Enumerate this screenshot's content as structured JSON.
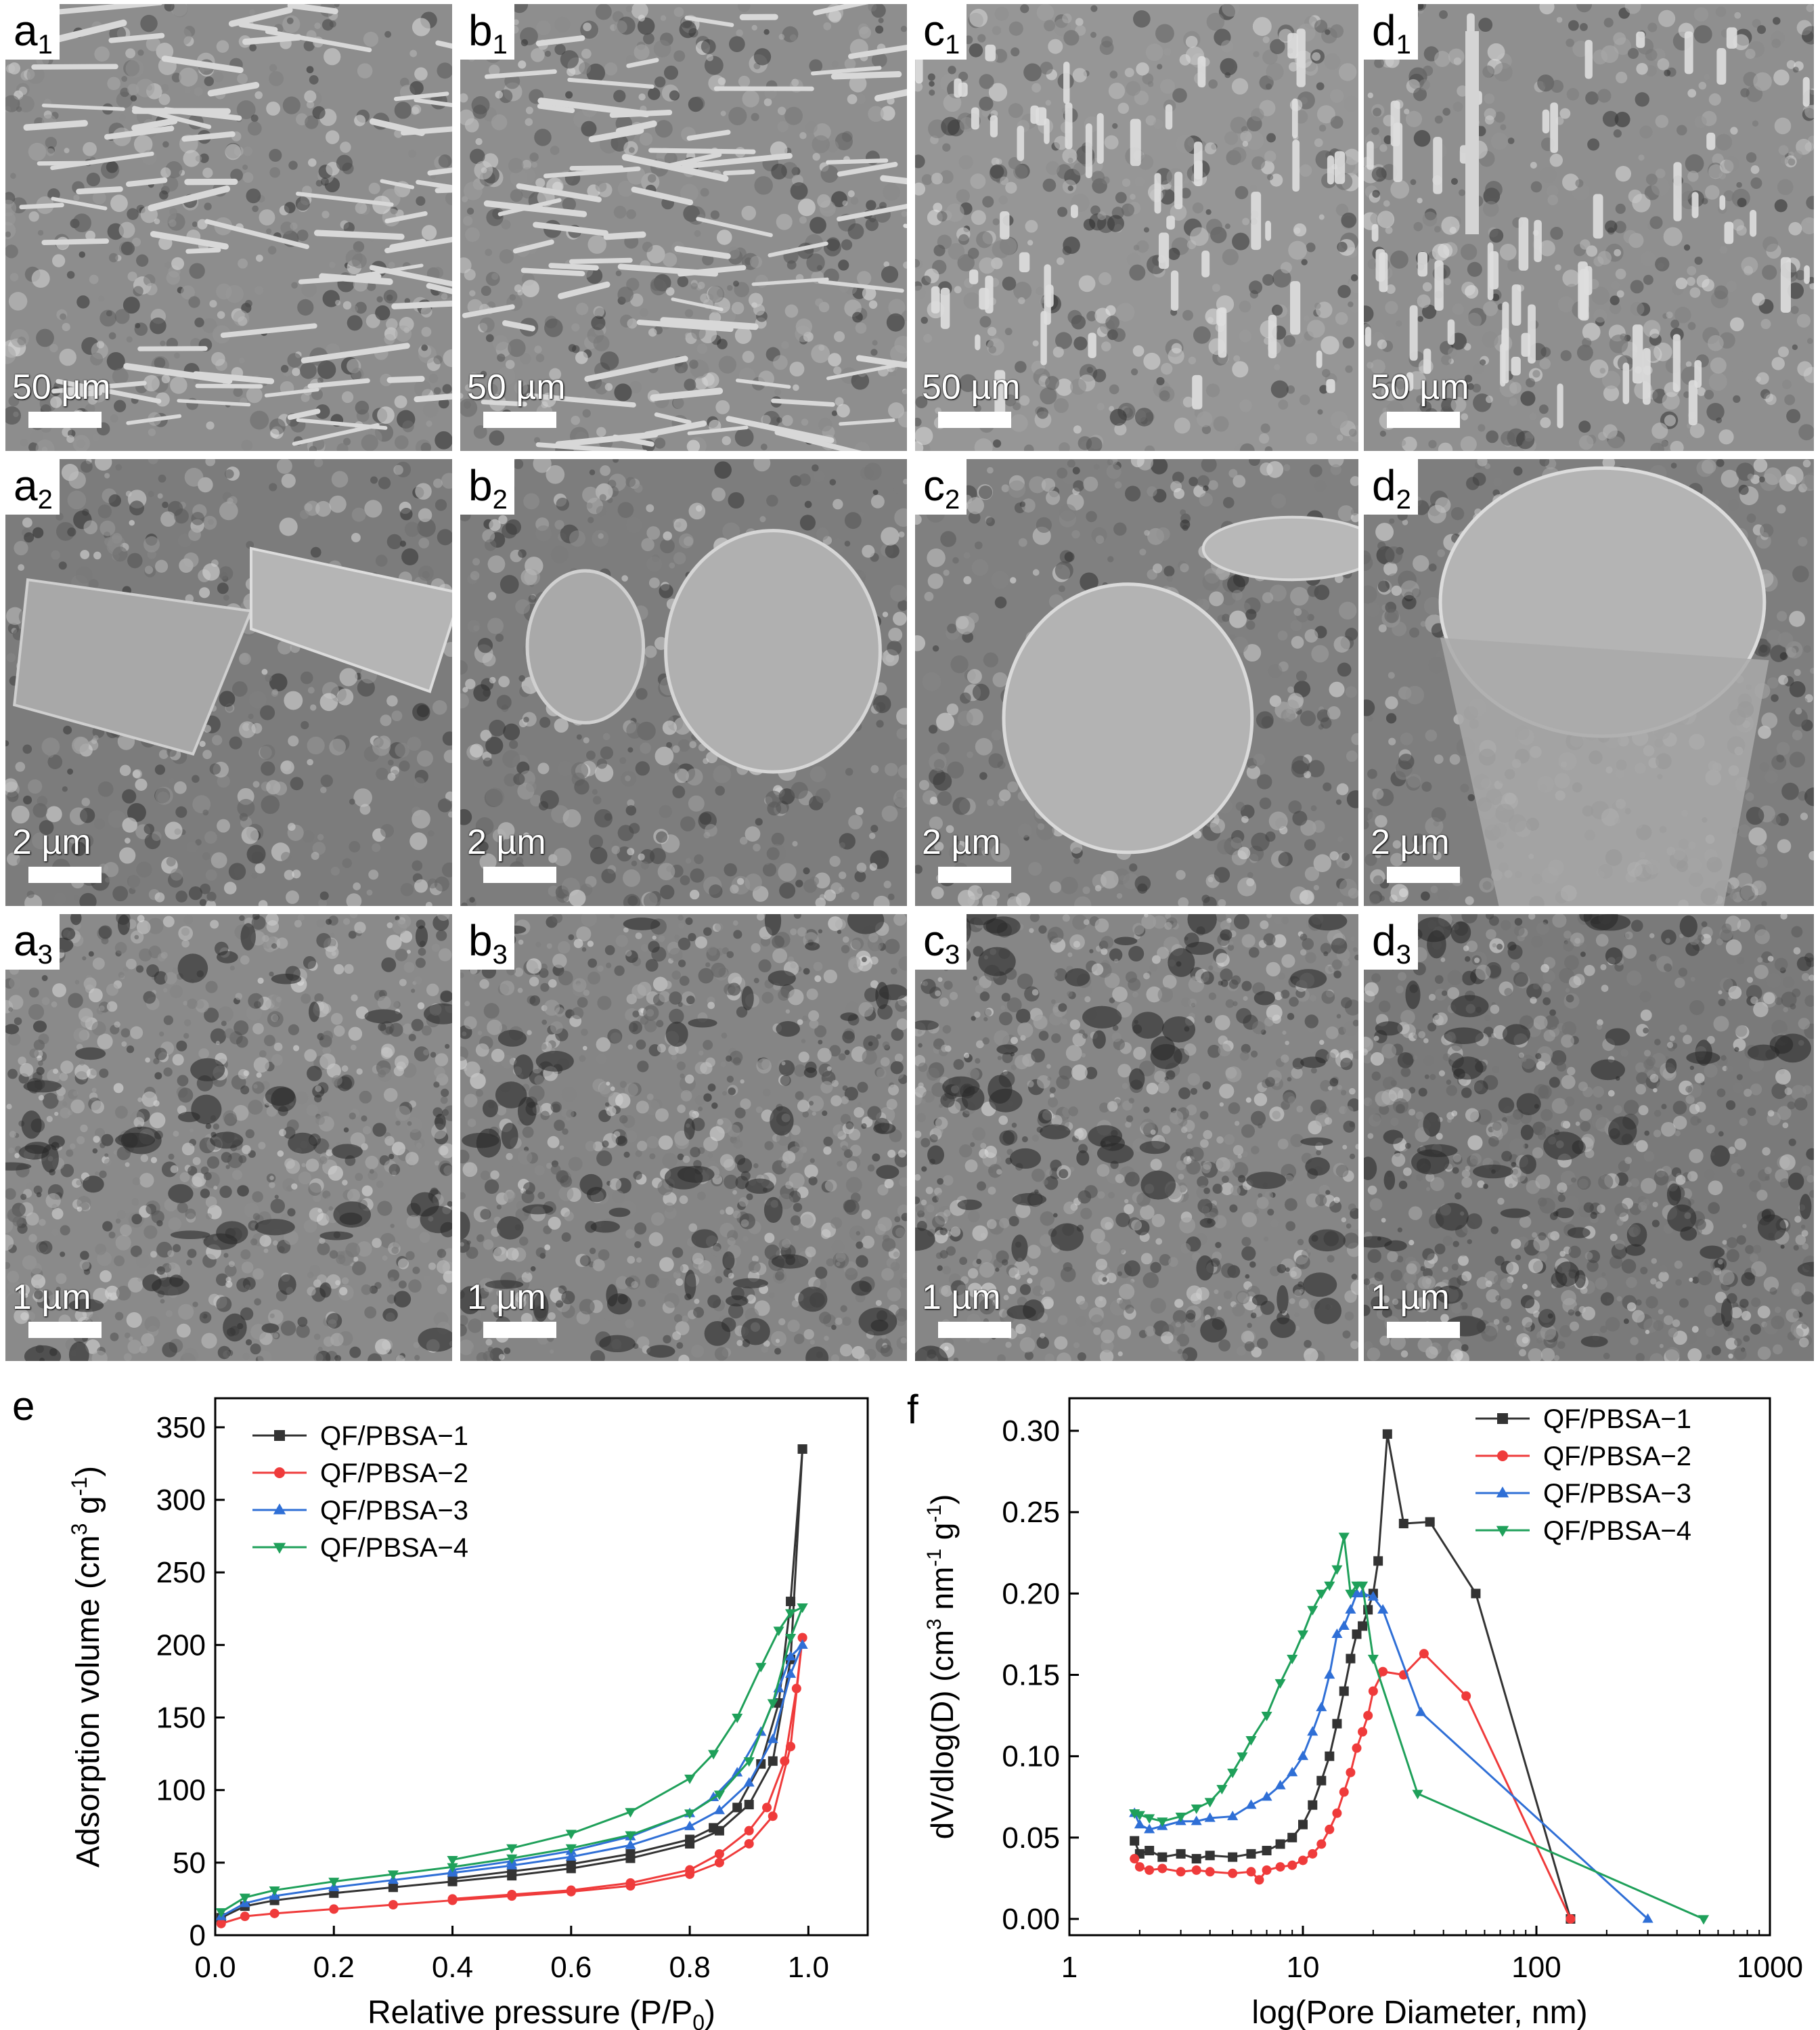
{
  "figure": {
    "panels": [
      {
        "id": "a1",
        "letter": "a",
        "sub": "1",
        "scale": "50 µm",
        "tone": "#8d8d8d",
        "kind": "rods"
      },
      {
        "id": "b1",
        "letter": "b",
        "sub": "1",
        "scale": "50 µm",
        "tone": "#8e8e8e",
        "kind": "rods"
      },
      {
        "id": "c1",
        "letter": "c",
        "sub": "1",
        "scale": "50 µm",
        "tone": "#969696",
        "kind": "pillars"
      },
      {
        "id": "d1",
        "letter": "d",
        "sub": "1",
        "scale": "50 µm",
        "tone": "#8f8f8f",
        "kind": "pillars"
      },
      {
        "id": "a2",
        "letter": "a",
        "sub": "2",
        "scale": "2 µm",
        "tone": "#7c7c7c",
        "kind": "fiber-side"
      },
      {
        "id": "b2",
        "letter": "b",
        "sub": "2",
        "scale": "2 µm",
        "tone": "#7d7d7d",
        "kind": "fiber-ends"
      },
      {
        "id": "c2",
        "letter": "c",
        "sub": "2",
        "scale": "2 µm",
        "tone": "#808080",
        "kind": "fiber-end"
      },
      {
        "id": "d2",
        "letter": "d",
        "sub": "2",
        "scale": "2 µm",
        "tone": "#7e7e7e",
        "kind": "fiber-big"
      },
      {
        "id": "a3",
        "letter": "a",
        "sub": "3",
        "scale": "1 µm",
        "tone": "#8a8a8a",
        "kind": "porous"
      },
      {
        "id": "b3",
        "letter": "b",
        "sub": "3",
        "scale": "1 µm",
        "tone": "#858585",
        "kind": "porous"
      },
      {
        "id": "c3",
        "letter": "c",
        "sub": "3",
        "scale": "1 µm",
        "tone": "#868686",
        "kind": "porous"
      },
      {
        "id": "d3",
        "letter": "d",
        "sub": "3",
        "scale": "1 µm",
        "tone": "#7a7a7a",
        "kind": "porous"
      }
    ],
    "label_e": "e",
    "label_f": "f"
  },
  "chart_data": [
    {
      "type": "line",
      "xlabel": "Relative pressure (P/P0)",
      "ylabel": "Adsorption volume (cm3 g-1)",
      "xlim": [
        0,
        1.1
      ],
      "ylim": [
        0,
        370
      ],
      "xticks": [
        "0.0",
        "0.2",
        "0.4",
        "0.6",
        "0.8",
        "1.0"
      ],
      "yticks": [
        "0",
        "50",
        "100",
        "150",
        "200",
        "250",
        "300",
        "350"
      ],
      "legend_position": "top-left",
      "series": [
        {
          "name": "QF/PBSA−1",
          "color": "#333333",
          "marker": "square",
          "adsorption": [
            [
              0.01,
              12
            ],
            [
              0.05,
              20
            ],
            [
              0.1,
              24
            ],
            [
              0.2,
              29
            ],
            [
              0.3,
              33
            ],
            [
              0.4,
              37
            ],
            [
              0.5,
              41
            ],
            [
              0.6,
              46
            ],
            [
              0.7,
              53
            ],
            [
              0.8,
              63
            ],
            [
              0.85,
              72
            ],
            [
              0.9,
              90
            ],
            [
              0.94,
              120
            ],
            [
              0.97,
              190
            ],
            [
              0.99,
              335
            ]
          ],
          "desorption": [
            [
              0.99,
              335
            ],
            [
              0.97,
              230
            ],
            [
              0.95,
              160
            ],
            [
              0.92,
              118
            ],
            [
              0.88,
              88
            ],
            [
              0.84,
              74
            ],
            [
              0.8,
              66
            ],
            [
              0.7,
              56
            ],
            [
              0.6,
              49
            ],
            [
              0.5,
              44
            ],
            [
              0.4,
              39
            ]
          ]
        },
        {
          "name": "QF/PBSA−2",
          "color": "#ef3b3b",
          "marker": "circle",
          "adsorption": [
            [
              0.01,
              8
            ],
            [
              0.05,
              13
            ],
            [
              0.1,
              15
            ],
            [
              0.2,
              18
            ],
            [
              0.3,
              21
            ],
            [
              0.4,
              24
            ],
            [
              0.5,
              27
            ],
            [
              0.6,
              30
            ],
            [
              0.7,
              34
            ],
            [
              0.8,
              42
            ],
            [
              0.85,
              50
            ],
            [
              0.9,
              63
            ],
            [
              0.94,
              82
            ],
            [
              0.97,
              130
            ],
            [
              0.99,
              205
            ]
          ],
          "desorption": [
            [
              0.99,
              205
            ],
            [
              0.98,
              170
            ],
            [
              0.96,
              120
            ],
            [
              0.93,
              88
            ],
            [
              0.9,
              72
            ],
            [
              0.85,
              56
            ],
            [
              0.8,
              45
            ],
            [
              0.7,
              36
            ],
            [
              0.6,
              31
            ],
            [
              0.5,
              28
            ],
            [
              0.4,
              25
            ]
          ]
        },
        {
          "name": "QF/PBSA−3",
          "color": "#2f6fd6",
          "marker": "triangle-up",
          "adsorption": [
            [
              0.01,
              13
            ],
            [
              0.05,
              22
            ],
            [
              0.1,
              27
            ],
            [
              0.2,
              33
            ],
            [
              0.3,
              38
            ],
            [
              0.4,
              43
            ],
            [
              0.5,
              48
            ],
            [
              0.6,
              54
            ],
            [
              0.7,
              62
            ],
            [
              0.8,
              75
            ],
            [
              0.85,
              86
            ],
            [
              0.9,
              105
            ],
            [
              0.94,
              135
            ],
            [
              0.97,
              180
            ],
            [
              0.99,
              200
            ]
          ],
          "desorption": [
            [
              0.99,
              200
            ],
            [
              0.97,
              192
            ],
            [
              0.95,
              170
            ],
            [
              0.92,
              140
            ],
            [
              0.88,
              112
            ],
            [
              0.84,
              95
            ],
            [
              0.8,
              84
            ],
            [
              0.7,
              68
            ],
            [
              0.6,
              58
            ],
            [
              0.5,
              51
            ],
            [
              0.4,
              45
            ]
          ]
        },
        {
          "name": "QF/PBSA−4",
          "color": "#1fa05a",
          "marker": "triangle-down",
          "adsorption": [
            [
              0.01,
              16
            ],
            [
              0.05,
              26
            ],
            [
              0.1,
              31
            ],
            [
              0.2,
              37
            ],
            [
              0.3,
              42
            ],
            [
              0.4,
              47
            ],
            [
              0.5,
              53
            ],
            [
              0.6,
              60
            ],
            [
              0.7,
              69
            ],
            [
              0.8,
              84
            ],
            [
              0.85,
              97
            ],
            [
              0.9,
              120
            ],
            [
              0.94,
              160
            ],
            [
              0.97,
              205
            ],
            [
              0.99,
              226
            ]
          ],
          "desorption": [
            [
              0.99,
              226
            ],
            [
              0.97,
              222
            ],
            [
              0.95,
              210
            ],
            [
              0.92,
              185
            ],
            [
              0.88,
              150
            ],
            [
              0.84,
              125
            ],
            [
              0.8,
              108
            ],
            [
              0.7,
              85
            ],
            [
              0.6,
              70
            ],
            [
              0.5,
              60
            ],
            [
              0.4,
              52
            ]
          ]
        }
      ]
    },
    {
      "type": "line",
      "xlabel": "log(Pore Diameter, nm)",
      "ylabel": "dV/dlog(D) (cm3 nm-1 g-1)",
      "xscale": "log",
      "xlim": [
        1,
        1000
      ],
      "ylim": [
        -0.01,
        0.32
      ],
      "xticks": [
        "1",
        "10",
        "100",
        "1000"
      ],
      "yticks": [
        "0.00",
        "0.05",
        "0.10",
        "0.15",
        "0.20",
        "0.25",
        "0.30"
      ],
      "legend_position": "top-right",
      "series": [
        {
          "name": "QF/PBSA−1",
          "color": "#333333",
          "marker": "square",
          "points": [
            [
              1.9,
              0.048
            ],
            [
              2.0,
              0.04
            ],
            [
              2.2,
              0.042
            ],
            [
              2.5,
              0.038
            ],
            [
              3,
              0.04
            ],
            [
              3.5,
              0.037
            ],
            [
              4,
              0.039
            ],
            [
              5,
              0.038
            ],
            [
              6,
              0.04
            ],
            [
              7,
              0.042
            ],
            [
              8,
              0.046
            ],
            [
              9,
              0.05
            ],
            [
              10,
              0.058
            ],
            [
              11,
              0.07
            ],
            [
              12,
              0.085
            ],
            [
              13,
              0.1
            ],
            [
              14,
              0.12
            ],
            [
              15,
              0.14
            ],
            [
              16,
              0.16
            ],
            [
              17,
              0.175
            ],
            [
              18,
              0.18
            ],
            [
              19,
              0.19
            ],
            [
              20,
              0.2
            ],
            [
              21,
              0.22
            ],
            [
              23,
              0.298
            ],
            [
              27,
              0.243
            ],
            [
              35,
              0.244
            ],
            [
              55,
              0.2
            ],
            [
              140,
              0.0
            ]
          ]
        },
        {
          "name": "QF/PBSA−2",
          "color": "#ef3b3b",
          "marker": "circle",
          "points": [
            [
              1.9,
              0.037
            ],
            [
              2.0,
              0.032
            ],
            [
              2.2,
              0.03
            ],
            [
              2.5,
              0.031
            ],
            [
              3,
              0.029
            ],
            [
              3.5,
              0.03
            ],
            [
              4,
              0.029
            ],
            [
              5,
              0.028
            ],
            [
              6,
              0.029
            ],
            [
              6.5,
              0.024
            ],
            [
              7,
              0.03
            ],
            [
              8,
              0.032
            ],
            [
              9,
              0.033
            ],
            [
              10,
              0.036
            ],
            [
              11,
              0.04
            ],
            [
              12,
              0.046
            ],
            [
              13,
              0.055
            ],
            [
              14,
              0.065
            ],
            [
              15,
              0.078
            ],
            [
              16,
              0.09
            ],
            [
              17,
              0.105
            ],
            [
              18,
              0.115
            ],
            [
              19,
              0.125
            ],
            [
              20,
              0.14
            ],
            [
              22,
              0.152
            ],
            [
              27,
              0.15
            ],
            [
              33,
              0.163
            ],
            [
              50,
              0.137
            ],
            [
              140,
              0.0
            ]
          ]
        },
        {
          "name": "QF/PBSA−3",
          "color": "#2f6fd6",
          "marker": "triangle-up",
          "points": [
            [
              1.9,
              0.065
            ],
            [
              2.0,
              0.058
            ],
            [
              2.2,
              0.055
            ],
            [
              2.5,
              0.057
            ],
            [
              3,
              0.06
            ],
            [
              3.5,
              0.06
            ],
            [
              4,
              0.062
            ],
            [
              5,
              0.063
            ],
            [
              6,
              0.07
            ],
            [
              7,
              0.075
            ],
            [
              8,
              0.082
            ],
            [
              9,
              0.09
            ],
            [
              10,
              0.1
            ],
            [
              11,
              0.115
            ],
            [
              12,
              0.13
            ],
            [
              13,
              0.15
            ],
            [
              14,
              0.175
            ],
            [
              15,
              0.18
            ],
            [
              16,
              0.19
            ],
            [
              17,
              0.2
            ],
            [
              18,
              0.2
            ],
            [
              20,
              0.198
            ],
            [
              22,
              0.19
            ],
            [
              32,
              0.127
            ],
            [
              300,
              0.0
            ]
          ]
        },
        {
          "name": "QF/PBSA−4",
          "color": "#1fa05a",
          "marker": "triangle-down",
          "points": [
            [
              1.9,
              0.065
            ],
            [
              2.0,
              0.064
            ],
            [
              2.2,
              0.062
            ],
            [
              2.5,
              0.06
            ],
            [
              3,
              0.063
            ],
            [
              3.5,
              0.068
            ],
            [
              4,
              0.072
            ],
            [
              4.5,
              0.08
            ],
            [
              5,
              0.09
            ],
            [
              5.5,
              0.1
            ],
            [
              6,
              0.11
            ],
            [
              7,
              0.125
            ],
            [
              8,
              0.145
            ],
            [
              9,
              0.16
            ],
            [
              10,
              0.175
            ],
            [
              11,
              0.19
            ],
            [
              12,
              0.2
            ],
            [
              13,
              0.205
            ],
            [
              14,
              0.215
            ],
            [
              15,
              0.235
            ],
            [
              16,
              0.2
            ],
            [
              17,
              0.205
            ],
            [
              18,
              0.205
            ],
            [
              20,
              0.16
            ],
            [
              31,
              0.077
            ],
            [
              520,
              0.0
            ]
          ]
        }
      ]
    }
  ]
}
